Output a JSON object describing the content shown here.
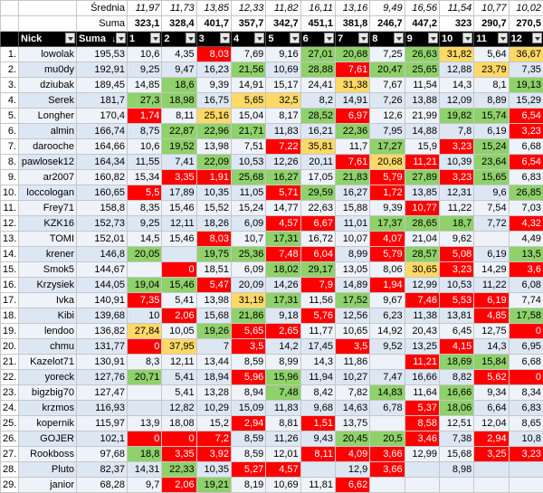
{
  "avg_label": "Średnia",
  "suma_label": "Suma",
  "averages": [
    "11,97",
    "11,73",
    "13,85",
    "12,33",
    "11,82",
    "16,11",
    "13,16",
    "9,49",
    "16,56",
    "11,54",
    "10,77",
    "10,02"
  ],
  "sums": [
    "323,1",
    "328,4",
    "401,7",
    "357,7",
    "342,7",
    "451,1",
    "381,8",
    "246,7",
    "447,2",
    "323",
    "290,7",
    "270,5"
  ],
  "header": {
    "nick": "Nick",
    "suma": "Suma",
    "sort_glyph": "↓",
    "cols": [
      "1",
      "2",
      "3",
      "4",
      "5",
      "6",
      "7",
      "8",
      "9",
      "10",
      "11",
      "12"
    ]
  },
  "colors": {
    "red": "#ff0000",
    "green": "#8fd16a",
    "yellow": "#ffd966",
    "header": "#000000",
    "band": "#dde7f4"
  },
  "rows": [
    {
      "n": "1.",
      "nick": "lowolak",
      "suma": "195,53",
      "v": [
        "10,6",
        "4,35",
        "8,03",
        "7,69",
        "9,16",
        "27,01",
        "20,68",
        "7,25",
        "26,63",
        "31,82",
        "5,64",
        "36,67"
      ],
      "c": [
        "",
        "",
        "r",
        "",
        "",
        "g",
        "g",
        "",
        "g",
        "y",
        "",
        "y"
      ]
    },
    {
      "n": "2.",
      "nick": "mu0dy",
      "suma": "192,91",
      "v": [
        "9,25",
        "9,47",
        "16,23",
        "21,56",
        "10,69",
        "28,88",
        "7,61",
        "20,47",
        "25,65",
        "12,88",
        "23,79",
        "7,35"
      ],
      "c": [
        "",
        "",
        "",
        "g",
        "",
        "g",
        "r",
        "g",
        "g",
        "",
        "y",
        ""
      ]
    },
    {
      "n": "3.",
      "nick": "dziubak",
      "suma": "189,45",
      "v": [
        "14,85",
        "18,6",
        "9,39",
        "14,91",
        "15,17",
        "24,41",
        "31,38",
        "7,67",
        "11,54",
        "14,3",
        "8,1",
        "19,13"
      ],
      "c": [
        "",
        "g",
        "",
        "",
        "",
        "",
        "y",
        "",
        "",
        "",
        "",
        "g"
      ]
    },
    {
      "n": "4.",
      "nick": "Serek",
      "suma": "181,7",
      "v": [
        "27,3",
        "18,98",
        "16,75",
        "5,65",
        "32,5",
        "8,2",
        "14,91",
        "7,26",
        "13,88",
        "12,09",
        "8,89",
        "15,29"
      ],
      "c": [
        "g",
        "g",
        "",
        "y",
        "y",
        "",
        "",
        "",
        "",
        "",
        "",
        ""
      ]
    },
    {
      "n": "5.",
      "nick": "Longher",
      "suma": "170,4",
      "v": [
        "1,74",
        "8,11",
        "25,16",
        "15,04",
        "8,17",
        "28,52",
        "6,97",
        "12,6",
        "21,99",
        "19,82",
        "15,74",
        "6,54"
      ],
      "c": [
        "r",
        "",
        "y",
        "",
        "",
        "g",
        "r",
        "",
        "",
        "g",
        "g",
        "r"
      ]
    },
    {
      "n": "6.",
      "nick": "almin",
      "suma": "166,74",
      "v": [
        "8,75",
        "22,87",
        "22,96",
        "21,71",
        "11,83",
        "16,21",
        "22,36",
        "7,95",
        "14,88",
        "7,8",
        "6,19",
        "3,23"
      ],
      "c": [
        "",
        "g",
        "g",
        "g",
        "",
        "",
        "g",
        "",
        "",
        "",
        "",
        "r"
      ]
    },
    {
      "n": "7.",
      "nick": "darooche",
      "suma": "164,66",
      "v": [
        "10,6",
        "19,52",
        "13,98",
        "7,51",
        "7,22",
        "35,81",
        "11,7",
        "17,27",
        "15,9",
        "3,23",
        "15,24",
        "6,68"
      ],
      "c": [
        "",
        "g",
        "",
        "",
        "r",
        "y",
        "",
        "g",
        "",
        "r",
        "g",
        ""
      ]
    },
    {
      "n": "8.",
      "nick": "pawlosek12",
      "suma": "164,34",
      "v": [
        "11,55",
        "7,41",
        "22,09",
        "10,53",
        "12,26",
        "20,11",
        "7,61",
        "20,68",
        "11,21",
        "10,39",
        "23,64",
        "6,54"
      ],
      "c": [
        "",
        "",
        "g",
        "",
        "",
        "",
        "r",
        "y",
        "r",
        "",
        "g",
        "r"
      ]
    },
    {
      "n": "9.",
      "nick": "ar2007",
      "suma": "160,82",
      "v": [
        "15,34",
        "3,35",
        "1,91",
        "25,68",
        "16,27",
        "17,05",
        "21,83",
        "5,79",
        "27,89",
        "3,23",
        "15,65",
        "6,83"
      ],
      "c": [
        "",
        "r",
        "r",
        "g",
        "g",
        "",
        "g",
        "r",
        "g",
        "r",
        "g",
        ""
      ]
    },
    {
      "n": "10.",
      "nick": "loccologan",
      "suma": "160,65",
      "v": [
        "5,5",
        "17,89",
        "10,35",
        "11,05",
        "5,71",
        "29,59",
        "16,27",
        "1,72",
        "13,85",
        "12,31",
        "9,6",
        "26,85"
      ],
      "c": [
        "r",
        "",
        "",
        "",
        "r",
        "g",
        "",
        "r",
        "",
        "",
        "",
        "g"
      ]
    },
    {
      "n": "11.",
      "nick": "Frey71",
      "suma": "158,8",
      "v": [
        "8,35",
        "15,46",
        "15,52",
        "15,24",
        "14,77",
        "22,63",
        "15,88",
        "9,39",
        "10,77",
        "11,22",
        "7,54",
        "7,03"
      ],
      "c": [
        "",
        "",
        "",
        "",
        "",
        "",
        "",
        "",
        "r",
        "",
        "",
        ""
      ]
    },
    {
      "n": "12.",
      "nick": "KZK16",
      "suma": "152,73",
      "v": [
        "9,25",
        "12,11",
        "18,26",
        "6,09",
        "4,57",
        "6,67",
        "11,01",
        "17,37",
        "28,65",
        "18,7",
        "7,72",
        "4,32"
      ],
      "c": [
        "",
        "",
        "",
        "",
        "r",
        "r",
        "",
        "g",
        "g",
        "g",
        "",
        "r"
      ]
    },
    {
      "n": "13.",
      "nick": "TOMI",
      "suma": "152,01",
      "v": [
        "14,5",
        "15,46",
        "8,03",
        "10,7",
        "17,31",
        "16,72",
        "10,07",
        "4,07",
        "21,04",
        "9,62",
        "",
        "4,49"
      ],
      "c": [
        "",
        "",
        "r",
        "",
        "g",
        "",
        "",
        "r",
        "",
        "",
        "",
        ""
      ]
    },
    {
      "n": "14.",
      "nick": "krener",
      "suma": "146,8",
      "v": [
        "20,05",
        "",
        "19,75",
        "25,36",
        "7,48",
        "6,04",
        "8,99",
        "5,79",
        "28,57",
        "5,08",
        "6,19",
        "13,5"
      ],
      "c": [
        "g",
        "",
        "g",
        "g",
        "r",
        "r",
        "",
        "r",
        "g",
        "r",
        "",
        "g"
      ]
    },
    {
      "n": "15.",
      "nick": "Smok5",
      "suma": "144,67",
      "v": [
        "",
        "0",
        "18,51",
        "6,09",
        "18,02",
        "29,17",
        "13,05",
        "8,06",
        "30,65",
        "3,23",
        "14,29",
        "3,6"
      ],
      "c": [
        "",
        "r",
        "",
        "",
        "g",
        "g",
        "",
        "",
        "y",
        "r",
        "",
        "r"
      ]
    },
    {
      "n": "16.",
      "nick": "Krzysiek",
      "suma": "144,05",
      "v": [
        "19,04",
        "15,46",
        "5,47",
        "20,09",
        "14,26",
        "7,9",
        "14,89",
        "1,94",
        "12,99",
        "10,53",
        "11,22",
        "6,08"
      ],
      "c": [
        "g",
        "g",
        "r",
        "",
        "",
        "r",
        "",
        "r",
        "",
        "",
        "",
        ""
      ]
    },
    {
      "n": "17.",
      "nick": "Ivka",
      "suma": "140,91",
      "v": [
        "7,35",
        "5,41",
        "13,98",
        "31,19",
        "17,31",
        "11,56",
        "17,52",
        "9,67",
        "7,46",
        "5,53",
        "6,19",
        "7,74"
      ],
      "c": [
        "r",
        "",
        "",
        "y",
        "g",
        "",
        "g",
        "",
        "r",
        "r",
        "r",
        ""
      ]
    },
    {
      "n": "18.",
      "nick": "Kibi",
      "suma": "139,68",
      "v": [
        "10",
        "2,06",
        "15,68",
        "21,86",
        "9,18",
        "5,76",
        "12,56",
        "6,23",
        "11,38",
        "13,81",
        "4,85",
        "17,58"
      ],
      "c": [
        "",
        "r",
        "",
        "g",
        "",
        "r",
        "",
        "",
        "",
        "",
        "r",
        "g"
      ]
    },
    {
      "n": "19.",
      "nick": "lendoo",
      "suma": "136,82",
      "v": [
        "27,84",
        "10,05",
        "19,26",
        "5,65",
        "2,65",
        "11,77",
        "10,65",
        "14,92",
        "20,43",
        "6,45",
        "12,75",
        "0"
      ],
      "c": [
        "y",
        "",
        "g",
        "r",
        "r",
        "",
        "",
        "",
        "",
        "",
        "",
        "r"
      ]
    },
    {
      "n": "20.",
      "nick": "chmu",
      "suma": "131,77",
      "v": [
        "0",
        "37,95",
        "7",
        "3,5",
        "14,2",
        "17,45",
        "3,5",
        "9,52",
        "13,25",
        "4,15",
        "14,3",
        "6,95"
      ],
      "c": [
        "r",
        "y",
        "",
        "r",
        "",
        "",
        "r",
        "",
        "",
        "r",
        "",
        ""
      ]
    },
    {
      "n": "21.",
      "nick": "Kazelot71",
      "suma": "130,91",
      "v": [
        "8,3",
        "12,11",
        "13,44",
        "8,59",
        "8,99",
        "14,3",
        "11,86",
        "",
        "11,21",
        "18,69",
        "15,84",
        "6,68"
      ],
      "c": [
        "",
        "",
        "",
        "",
        "",
        "",
        "",
        "",
        "r",
        "g",
        "g",
        ""
      ]
    },
    {
      "n": "22.",
      "nick": "yoreck",
      "suma": "127,76",
      "v": [
        "20,71",
        "5,41",
        "18,94",
        "5,96",
        "15,96",
        "11,94",
        "10,27",
        "7,47",
        "16,66",
        "8,82",
        "5,62",
        "0"
      ],
      "c": [
        "g",
        "",
        "",
        "r",
        "g",
        "",
        "",
        "",
        "",
        "",
        "r",
        "r"
      ]
    },
    {
      "n": "23.",
      "nick": "bigzbig70",
      "suma": "127,47",
      "v": [
        "",
        "5,41",
        "13,28",
        "8,94",
        "7,48",
        "8,42",
        "7,82",
        "14,83",
        "11,64",
        "16,66",
        "9,34",
        "8,34"
      ],
      "c": [
        "",
        "",
        "",
        "",
        "g",
        "",
        "",
        "g",
        "",
        "g",
        "",
        ""
      ]
    },
    {
      "n": "24.",
      "nick": "krzmos",
      "suma": "116,93",
      "v": [
        "",
        "12,82",
        "10,29",
        "15,09",
        "11,83",
        "9,68",
        "14,63",
        "6,78",
        "5,37",
        "18,06",
        "6,64",
        "6,83"
      ],
      "c": [
        "",
        "",
        "",
        "",
        "",
        "",
        "",
        "",
        "r",
        "g",
        "",
        ""
      ]
    },
    {
      "n": "25.",
      "nick": "kopernik",
      "suma": "115,97",
      "v": [
        "13,9",
        "18,08",
        "15,2",
        "2,94",
        "8,81",
        "1,51",
        "13,75",
        "",
        "8,58",
        "12,51",
        "12,04",
        "8,65"
      ],
      "c": [
        "",
        "",
        "",
        "r",
        "",
        "r",
        "",
        "",
        "r",
        "",
        "",
        ""
      ]
    },
    {
      "n": "26.",
      "nick": "GOJER",
      "suma": "102,1",
      "v": [
        "0",
        "0",
        "7,2",
        "8,59",
        "11,26",
        "9,43",
        "20,45",
        "20,5",
        "3,46",
        "7,38",
        "2,94",
        "10,8"
      ],
      "c": [
        "r",
        "r",
        "r",
        "",
        "",
        "",
        "g",
        "g",
        "r",
        "",
        "r",
        ""
      ]
    },
    {
      "n": "27.",
      "nick": "Rookboss",
      "suma": "97,68",
      "v": [
        "18,8",
        "3,35",
        "3,92",
        "8,59",
        "12,01",
        "8,11",
        "4,09",
        "3,66",
        "12,99",
        "15,68",
        "3,25",
        "3,23"
      ],
      "c": [
        "g",
        "r",
        "r",
        "",
        "",
        "r",
        "r",
        "r",
        "",
        "",
        "r",
        "r"
      ]
    },
    {
      "n": "28.",
      "nick": "Pluto",
      "suma": "82,37",
      "v": [
        "14,31",
        "22,33",
        "10,35",
        "5,27",
        "4,57",
        "",
        "12,9",
        "3,66",
        "",
        "8,98",
        "",
        ""
      ],
      "c": [
        "",
        "g",
        "",
        "r",
        "r",
        "",
        "",
        "r",
        "",
        "",
        "",
        ""
      ]
    },
    {
      "n": "29.",
      "nick": "janior",
      "suma": "68,28",
      "v": [
        "9,7",
        "2,06",
        "19,21",
        "8,19",
        "10,69",
        "11,81",
        "6,62",
        "",
        "",
        "",
        "",
        ""
      ],
      "c": [
        "",
        "r",
        "g",
        "",
        "",
        "",
        "r",
        "",
        "",
        "",
        "",
        ""
      ]
    }
  ]
}
